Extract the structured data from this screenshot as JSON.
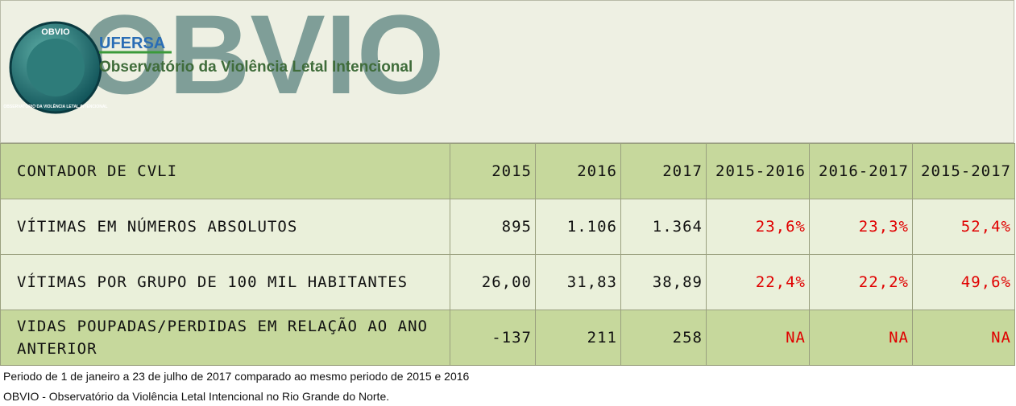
{
  "header": {
    "badge_top": "OBVIO",
    "badge_bottom": "OBSERVATÓRIO DA VIOLÊNCIA LETAL INTENCIONAL",
    "university": "UFERSA",
    "logo": "OBVIO",
    "subtitle": "Observatório da Violência Letal Intencional"
  },
  "table": {
    "columns": [
      "CONTADOR DE CVLI",
      "2015",
      "2016",
      "2017",
      "2015-2016",
      "2016-2017",
      "2015-2017"
    ],
    "rows": [
      [
        "VÍTIMAS EM NÚMEROS ABSOLUTOS",
        "895",
        "1.106",
        "1.364",
        "23,6%",
        "23,3%",
        "52,4%"
      ],
      [
        "VÍTIMAS POR GRUPO DE 100 MIL HABITANTES",
        "26,00",
        "31,83",
        "38,89",
        "22,4%",
        "22,2%",
        "49,6%"
      ],
      [
        "VIDAS POUPADAS/PERDIDAS EM RELAÇÃO AO ANO ANTERIOR",
        "-137",
        "211",
        "258",
        "NA",
        "NA",
        "NA"
      ]
    ]
  },
  "footer": [
    "Periodo de 1 de janeiro a 23 de julho de 2017 comparado ao mesmo periodo de 2015 e 2016",
    "OBVIO - Observatório da Violência Letal Intencional no Rio Grande do Norte."
  ]
}
